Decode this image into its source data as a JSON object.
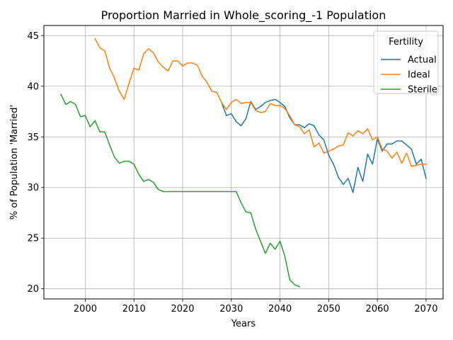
{
  "chart_data": {
    "type": "line",
    "title": "Proportion Married in Whole_scoring_-1 Population",
    "xlabel": "Years",
    "ylabel": "% of Population 'Married'",
    "xlim": [
      1991.5,
      2073.5
    ],
    "ylim": [
      19,
      46
    ],
    "xticks": [
      2000,
      2010,
      2020,
      2030,
      2040,
      2050,
      2060,
      2070
    ],
    "yticks": [
      20,
      25,
      30,
      35,
      40,
      45
    ],
    "grid": true,
    "legend": {
      "title": "Fertility",
      "position": "top-right"
    },
    "series": [
      {
        "name": "Actual",
        "color": "#1f77b4",
        "x": [
          2028,
          2029,
          2030,
          2031,
          2032,
          2033,
          2034,
          2035,
          2036,
          2037,
          2038,
          2039,
          2040,
          2041,
          2042,
          2043,
          2044,
          2045,
          2046,
          2047,
          2048,
          2049,
          2050,
          2051,
          2052,
          2053,
          2054,
          2055,
          2056,
          2057,
          2058,
          2059,
          2060,
          2061,
          2062,
          2063,
          2064,
          2065,
          2066,
          2067,
          2068,
          2069,
          2070
        ],
        "y": [
          38.4,
          37.1,
          37.3,
          36.5,
          36.1,
          36.8,
          38.5,
          37.7,
          38.0,
          38.4,
          38.6,
          38.7,
          38.4,
          38.0,
          36.9,
          36.2,
          36.2,
          35.9,
          36.3,
          36.1,
          35.2,
          34.7,
          33.2,
          32.3,
          31.0,
          30.3,
          30.9,
          29.5,
          32.0,
          30.6,
          33.3,
          32.3,
          34.8,
          33.6,
          34.3,
          34.3,
          34.6,
          34.6,
          34.2,
          33.8,
          32.3,
          32.8,
          30.9
        ]
      },
      {
        "name": "Ideal",
        "color": "#ff7f0e",
        "x": [
          2002,
          2003,
          2004,
          2005,
          2006,
          2007,
          2008,
          2009,
          2010,
          2011,
          2012,
          2013,
          2014,
          2015,
          2016,
          2017,
          2018,
          2019,
          2020,
          2021,
          2022,
          2023,
          2024,
          2025,
          2026,
          2027,
          2028,
          2029,
          2030,
          2031,
          2032,
          2033,
          2034,
          2035,
          2036,
          2037,
          2038,
          2039,
          2040,
          2041,
          2042,
          2043,
          2044,
          2045,
          2046,
          2047,
          2048,
          2049,
          2050,
          2051,
          2052,
          2053,
          2054,
          2055,
          2056,
          2057,
          2058,
          2059,
          2060,
          2061,
          2062,
          2063,
          2064,
          2065,
          2066,
          2067,
          2068,
          2069,
          2070
        ],
        "y": [
          44.7,
          43.8,
          43.5,
          41.8,
          40.8,
          39.5,
          38.7,
          40.3,
          41.8,
          41.6,
          43.2,
          43.7,
          43.3,
          42.4,
          41.9,
          41.5,
          42.5,
          42.5,
          42.0,
          42.3,
          42.3,
          42.1,
          41.0,
          40.4,
          39.5,
          39.4,
          38.4,
          37.7,
          38.4,
          38.7,
          38.3,
          38.4,
          38.4,
          37.6,
          37.4,
          37.5,
          38.3,
          38.1,
          38.1,
          37.8,
          37.1,
          36.2,
          36.0,
          35.3,
          35.7,
          34.0,
          34.4,
          33.4,
          33.6,
          33.8,
          34.1,
          34.2,
          35.4,
          35.1,
          35.6,
          35.3,
          35.8,
          34.7,
          35.0,
          33.8,
          33.6,
          32.9,
          33.5,
          32.4,
          33.4,
          32.1,
          32.2,
          32.3,
          32.3
        ]
      },
      {
        "name": "Sterile",
        "color": "#2ca02c",
        "x": [
          1995,
          1996,
          1997,
          1998,
          1999,
          2000,
          2001,
          2002,
          2003,
          2004,
          2005,
          2006,
          2007,
          2008,
          2009,
          2010,
          2011,
          2012,
          2013,
          2014,
          2015,
          2016,
          2017,
          2018,
          2019,
          2020,
          2021,
          2022,
          2023,
          2024,
          2025,
          2026,
          2027,
          2028,
          2029,
          2030,
          2031,
          2032,
          2033,
          2034,
          2035,
          2036,
          2037,
          2038,
          2039,
          2040,
          2041,
          2042,
          2043,
          2044
        ],
        "y": [
          39.2,
          38.2,
          38.5,
          38.2,
          37.0,
          37.1,
          36.0,
          36.6,
          35.5,
          35.5,
          34.2,
          33.0,
          32.4,
          32.6,
          32.6,
          32.3,
          31.3,
          30.6,
          30.8,
          30.5,
          29.8,
          29.6,
          29.6,
          29.6,
          29.6,
          29.6,
          29.6,
          29.6,
          29.6,
          29.6,
          29.6,
          29.6,
          29.6,
          29.6,
          29.6,
          29.6,
          29.6,
          28.5,
          27.6,
          27.5,
          25.9,
          24.7,
          23.5,
          24.5,
          23.9,
          24.7,
          23.2,
          20.9,
          20.4,
          20.2
        ]
      }
    ]
  }
}
